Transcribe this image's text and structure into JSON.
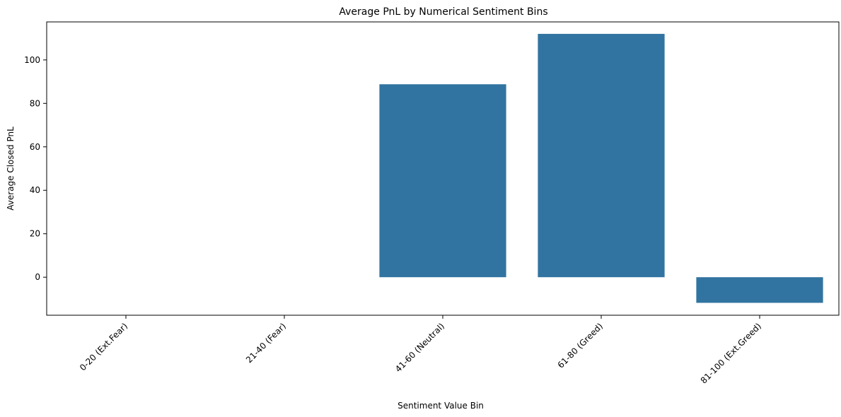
{
  "chart_data": {
    "type": "bar",
    "title": "Average PnL by Numerical Sentiment Bins",
    "xlabel": "Sentiment Value Bin",
    "ylabel": "Average Closed PnL",
    "categories": [
      "0-20 (Ext.Fear)",
      "21-40 (Fear)",
      "41-60 (Neutral)",
      "61-80 (Greed)",
      "81-100 (Ext.Greed)"
    ],
    "values": [
      null,
      null,
      88.8,
      112.0,
      -11.8
    ],
    "ylim": [
      -17.5,
      117.5
    ],
    "yticks": [
      0,
      20,
      40,
      60,
      80,
      100
    ],
    "bar_color": "#3274a1",
    "grid": false,
    "legend": false
  }
}
